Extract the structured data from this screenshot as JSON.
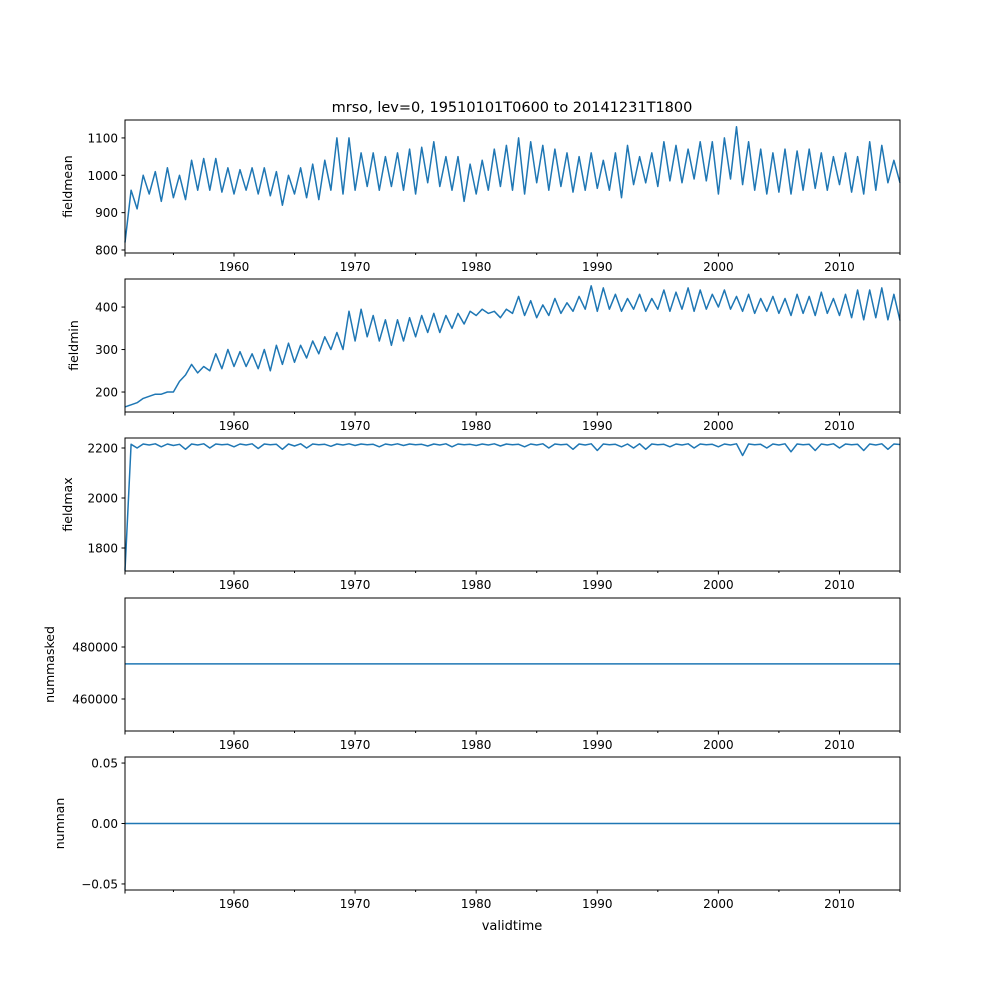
{
  "chart_data": [
    {
      "type": "line",
      "title": "mrso, lev=0, 19510101T0600 to 20141231T1800",
      "ylabel": "fieldmean",
      "xlabel": "",
      "xlim": [
        1951.0,
        2015.0
      ],
      "ylim": [
        792,
        1148
      ],
      "xticks": [
        1960,
        1970,
        1980,
        1990,
        2000,
        2010
      ],
      "yticks": [
        800,
        900,
        1000,
        1100
      ],
      "x_start": 1951.0,
      "x_step": 0.5,
      "values": [
        820,
        960,
        910,
        1000,
        950,
        1010,
        930,
        1020,
        940,
        1000,
        935,
        1040,
        960,
        1045,
        960,
        1045,
        955,
        1020,
        950,
        1015,
        960,
        1020,
        950,
        1020,
        945,
        1010,
        920,
        1000,
        950,
        1020,
        940,
        1030,
        935,
        1040,
        960,
        1100,
        950,
        1100,
        960,
        1060,
        970,
        1060,
        960,
        1050,
        970,
        1060,
        960,
        1070,
        950,
        1075,
        980,
        1090,
        970,
        1050,
        960,
        1050,
        930,
        1030,
        950,
        1040,
        960,
        1070,
        970,
        1080,
        960,
        1100,
        950,
        1090,
        980,
        1080,
        960,
        1070,
        970,
        1060,
        955,
        1050,
        960,
        1060,
        965,
        1040,
        960,
        1060,
        940,
        1080,
        975,
        1050,
        980,
        1060,
        970,
        1090,
        985,
        1080,
        980,
        1070,
        990,
        1090,
        985,
        1090,
        950,
        1100,
        990,
        1130,
        975,
        1090,
        960,
        1070,
        950,
        1060,
        955,
        1070,
        950,
        1065,
        960,
        1070,
        965,
        1060,
        960,
        1050,
        975,
        1060,
        955,
        1050,
        950,
        1090,
        960,
        1080,
        980,
        1040,
        980
      ]
    },
    {
      "type": "line",
      "ylabel": "fieldmin",
      "xlim": [
        1951.0,
        2015.0
      ],
      "ylim": [
        153,
        466
      ],
      "xticks": [
        1960,
        1970,
        1980,
        1990,
        2000,
        2010
      ],
      "yticks": [
        200,
        300,
        400
      ],
      "x_start": 1951.0,
      "x_step": 0.5,
      "values": [
        165,
        170,
        175,
        185,
        190,
        195,
        195,
        200,
        200,
        225,
        240,
        265,
        245,
        260,
        250,
        290,
        255,
        300,
        260,
        295,
        260,
        290,
        255,
        300,
        250,
        310,
        265,
        315,
        270,
        310,
        280,
        320,
        290,
        330,
        300,
        340,
        300,
        390,
        320,
        395,
        330,
        380,
        320,
        370,
        310,
        370,
        320,
        375,
        330,
        380,
        340,
        385,
        340,
        380,
        350,
        385,
        360,
        390,
        380,
        395,
        385,
        390,
        375,
        395,
        385,
        425,
        380,
        415,
        375,
        405,
        380,
        420,
        385,
        410,
        390,
        425,
        395,
        450,
        390,
        445,
        395,
        430,
        390,
        420,
        395,
        430,
        390,
        420,
        395,
        440,
        390,
        435,
        395,
        445,
        390,
        440,
        395,
        430,
        400,
        440,
        395,
        425,
        390,
        430,
        385,
        420,
        390,
        425,
        385,
        420,
        380,
        430,
        385,
        425,
        380,
        435,
        385,
        420,
        380,
        430,
        375,
        440,
        370,
        440,
        375,
        445,
        370,
        430,
        368
      ]
    },
    {
      "type": "line",
      "ylabel": "fieldmax",
      "xlim": [
        1951.0,
        2015.0
      ],
      "ylim": [
        1708,
        2240
      ],
      "xticks": [
        1960,
        1970,
        1980,
        1990,
        2000,
        2010
      ],
      "yticks": [
        1800,
        2000,
        2200
      ],
      "x_start": 1951.0,
      "x_step": 0.5,
      "values": [
        1710,
        2215,
        2200,
        2216,
        2212,
        2217,
        2205,
        2216,
        2210,
        2215,
        2195,
        2216,
        2212,
        2217,
        2200,
        2216,
        2213,
        2215,
        2205,
        2216,
        2212,
        2217,
        2198,
        2216,
        2213,
        2215,
        2195,
        2216,
        2208,
        2217,
        2200,
        2216,
        2213,
        2215,
        2207,
        2216,
        2212,
        2217,
        2210,
        2216,
        2213,
        2215,
        2205,
        2216,
        2212,
        2217,
        2210,
        2216,
        2213,
        2215,
        2208,
        2216,
        2212,
        2217,
        2205,
        2216,
        2213,
        2215,
        2210,
        2216,
        2212,
        2217,
        2208,
        2216,
        2213,
        2215,
        2205,
        2216,
        2212,
        2217,
        2200,
        2216,
        2213,
        2215,
        2195,
        2216,
        2212,
        2217,
        2190,
        2216,
        2213,
        2215,
        2205,
        2216,
        2200,
        2217,
        2195,
        2216,
        2213,
        2215,
        2205,
        2216,
        2212,
        2217,
        2200,
        2216,
        2213,
        2215,
        2205,
        2216,
        2212,
        2217,
        2170,
        2216,
        2213,
        2215,
        2200,
        2216,
        2212,
        2217,
        2185,
        2216,
        2213,
        2215,
        2190,
        2216,
        2212,
        2217,
        2200,
        2216,
        2213,
        2215,
        2190,
        2216,
        2212,
        2217,
        2195,
        2216,
        2214
      ]
    },
    {
      "type": "line",
      "ylabel": "nummasked",
      "xlim": [
        1951.0,
        2015.0
      ],
      "ylim": [
        447692,
        498846
      ],
      "xticks": [
        1960,
        1970,
        1980,
        1990,
        2000,
        2010
      ],
      "yticks": [
        460000,
        480000
      ],
      "x": [
        1951.0,
        2015.0
      ],
      "values": [
        473500,
        473500
      ]
    },
    {
      "type": "line",
      "ylabel": "numnan",
      "xlabel": "validtime",
      "xlim": [
        1951.0,
        2015.0
      ],
      "ylim": [
        -0.055,
        0.055
      ],
      "xticks": [
        1960,
        1970,
        1980,
        1990,
        2000,
        2010
      ],
      "yticks": [
        -0.05,
        0.0,
        0.05
      ],
      "ytick_labels": [
        "−0.05",
        "0.00",
        "0.05"
      ],
      "x": [
        1951.0,
        2015.0
      ],
      "values": [
        0,
        0
      ]
    }
  ],
  "colors": {
    "line": "#1f77b4",
    "axes": "#000000"
  }
}
